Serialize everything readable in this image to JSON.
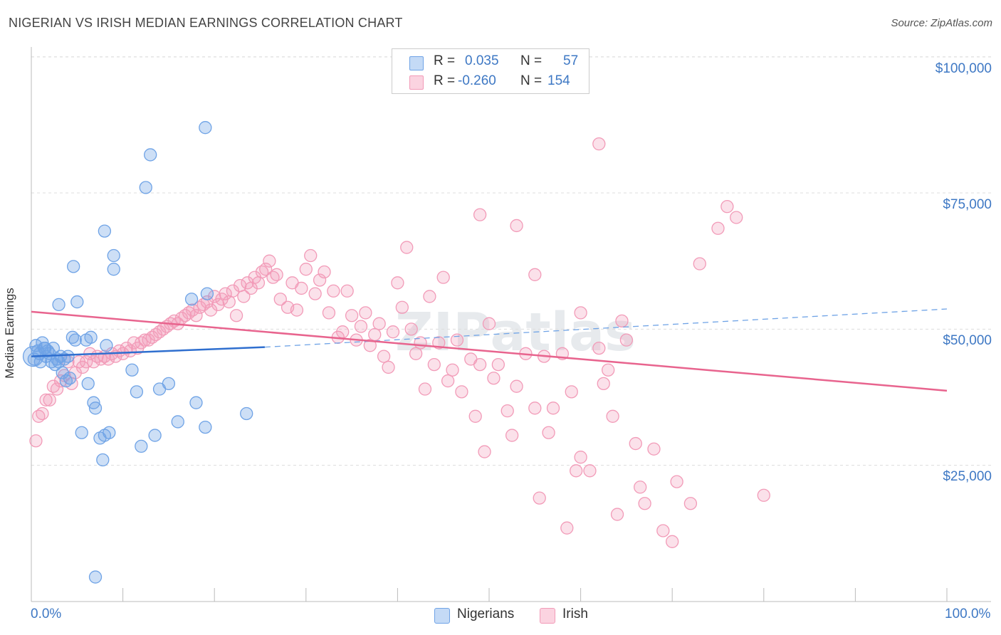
{
  "title": "NIGERIAN VS IRISH MEDIAN EARNINGS CORRELATION CHART",
  "source": "Source: ZipAtlas.com",
  "watermark": "ZIPatlas",
  "legend": {
    "rows": [
      {
        "r_label": "R =",
        "r_value": "0.035",
        "n_label": "N =",
        "n_value": "57"
      },
      {
        "r_label": "R =",
        "r_value": "-0.260",
        "n_label": "N =",
        "n_value": "154"
      }
    ]
  },
  "bottom_legend": {
    "nigerians": "Nigerians",
    "irish": "Irish"
  },
  "y_ticks": [
    "$100,000",
    "$75,000",
    "$50,000",
    "$25,000"
  ],
  "x_ticks": {
    "left": "0.0%",
    "right": "100.0%"
  },
  "colors": {
    "nigerians": "#6fa3e6",
    "nigerians_line": "#2f6fcf",
    "irish": "#f29bb8",
    "irish_line": "#e8648e",
    "accent": "#3e78c4"
  },
  "chart_data": {
    "type": "scatter",
    "title": "NIGERIAN VS IRISH MEDIAN EARNINGS CORRELATION CHART",
    "xlabel": "",
    "ylabel": "Median Earnings",
    "xlim": [
      0,
      100
    ],
    "ylim": [
      0,
      103000
    ],
    "y_gridlines": [
      25000,
      50000,
      75000,
      100000
    ],
    "series": [
      {
        "name": "Nigerians",
        "R": 0.035,
        "N": 57,
        "trend": {
          "x": [
            0,
            25.5
          ],
          "y": [
            45000,
            46700
          ],
          "dashed_to": [
            100,
            53700
          ]
        },
        "points": [
          [
            0.3,
            44500
          ],
          [
            0.5,
            47000
          ],
          [
            0.7,
            46000
          ],
          [
            0.9,
            45500
          ],
          [
            1.0,
            44000
          ],
          [
            1.2,
            47500
          ],
          [
            1.4,
            46500
          ],
          [
            1.6,
            45000
          ],
          [
            1.8,
            46000
          ],
          [
            2.0,
            45500
          ],
          [
            2.2,
            44000
          ],
          [
            2.4,
            46500
          ],
          [
            2.6,
            43500
          ],
          [
            2.8,
            44500
          ],
          [
            3.0,
            44000
          ],
          [
            3.2,
            45000
          ],
          [
            3.4,
            42000
          ],
          [
            3.6,
            44500
          ],
          [
            3.8,
            40500
          ],
          [
            4.0,
            45000
          ],
          [
            4.2,
            41000
          ],
          [
            4.5,
            48500
          ],
          [
            4.8,
            48000
          ],
          [
            5.0,
            55000
          ],
          [
            4.6,
            61500
          ],
          [
            3.0,
            54500
          ],
          [
            5.5,
            31000
          ],
          [
            6.0,
            48000
          ],
          [
            6.2,
            40000
          ],
          [
            6.5,
            48500
          ],
          [
            6.8,
            36500
          ],
          [
            7.0,
            35500
          ],
          [
            7.5,
            30000
          ],
          [
            7.8,
            26000
          ],
          [
            8.0,
            30500
          ],
          [
            8.2,
            47000
          ],
          [
            8.5,
            31000
          ],
          [
            9.0,
            61000
          ],
          [
            9.0,
            63500
          ],
          [
            8.0,
            68000
          ],
          [
            11.0,
            42500
          ],
          [
            11.5,
            38500
          ],
          [
            12.0,
            28500
          ],
          [
            12.5,
            76000
          ],
          [
            13.0,
            82000
          ],
          [
            13.5,
            30500
          ],
          [
            14.0,
            39000
          ],
          [
            15.0,
            40000
          ],
          [
            16.0,
            33000
          ],
          [
            17.5,
            55500
          ],
          [
            18.0,
            36500
          ],
          [
            19.0,
            32000
          ],
          [
            19.0,
            87000
          ],
          [
            19.2,
            56500
          ],
          [
            23.5,
            34500
          ],
          [
            7.0,
            4500
          ],
          [
            1.5,
            46500
          ]
        ]
      },
      {
        "name": "Irish",
        "R": -0.26,
        "N": 154,
        "trend": {
          "x": [
            0,
            100
          ],
          "y": [
            53200,
            38700
          ]
        },
        "points": [
          [
            0.5,
            29500
          ],
          [
            0.8,
            34000
          ],
          [
            1.2,
            34500
          ],
          [
            1.6,
            37000
          ],
          [
            2.0,
            37000
          ],
          [
            2.4,
            39500
          ],
          [
            2.8,
            39000
          ],
          [
            3.2,
            40500
          ],
          [
            3.6,
            41500
          ],
          [
            4.0,
            44000
          ],
          [
            4.4,
            40000
          ],
          [
            4.8,
            42000
          ],
          [
            5.2,
            44000
          ],
          [
            5.6,
            43000
          ],
          [
            6.0,
            44000
          ],
          [
            6.4,
            45500
          ],
          [
            6.8,
            44000
          ],
          [
            7.2,
            45000
          ],
          [
            7.6,
            44500
          ],
          [
            8.0,
            45000
          ],
          [
            8.4,
            44500
          ],
          [
            8.8,
            45500
          ],
          [
            9.2,
            45000
          ],
          [
            9.6,
            46000
          ],
          [
            10.0,
            45500
          ],
          [
            10.4,
            46500
          ],
          [
            10.8,
            46000
          ],
          [
            11.2,
            47500
          ],
          [
            11.6,
            46500
          ],
          [
            12.0,
            47500
          ],
          [
            12.4,
            48000
          ],
          [
            12.8,
            48000
          ],
          [
            13.2,
            48500
          ],
          [
            13.6,
            49000
          ],
          [
            14.0,
            49500
          ],
          [
            14.4,
            50000
          ],
          [
            14.8,
            50500
          ],
          [
            15.2,
            51000
          ],
          [
            15.6,
            51500
          ],
          [
            16.0,
            51000
          ],
          [
            16.4,
            52000
          ],
          [
            16.8,
            52500
          ],
          [
            17.2,
            53000
          ],
          [
            17.6,
            53500
          ],
          [
            18.0,
            52500
          ],
          [
            18.4,
            54000
          ],
          [
            18.8,
            54500
          ],
          [
            19.2,
            55000
          ],
          [
            19.6,
            53500
          ],
          [
            20.0,
            56000
          ],
          [
            20.4,
            54500
          ],
          [
            20.8,
            55500
          ],
          [
            21.2,
            56500
          ],
          [
            21.6,
            55000
          ],
          [
            22.0,
            57000
          ],
          [
            22.4,
            52500
          ],
          [
            22.8,
            58000
          ],
          [
            23.2,
            56000
          ],
          [
            23.6,
            58500
          ],
          [
            24.0,
            57500
          ],
          [
            24.4,
            59500
          ],
          [
            24.8,
            58500
          ],
          [
            25.2,
            60500
          ],
          [
            25.6,
            61000
          ],
          [
            26.0,
            62500
          ],
          [
            26.4,
            59500
          ],
          [
            26.8,
            60000
          ],
          [
            27.2,
            55500
          ],
          [
            28.0,
            54000
          ],
          [
            28.5,
            58500
          ],
          [
            29.0,
            53500
          ],
          [
            29.5,
            57500
          ],
          [
            30.0,
            61000
          ],
          [
            30.5,
            63500
          ],
          [
            31.0,
            56500
          ],
          [
            31.5,
            59000
          ],
          [
            32.0,
            60500
          ],
          [
            32.5,
            53000
          ],
          [
            33.0,
            57000
          ],
          [
            33.5,
            48500
          ],
          [
            34.0,
            49500
          ],
          [
            34.5,
            57000
          ],
          [
            35.0,
            52500
          ],
          [
            35.5,
            48000
          ],
          [
            36.0,
            50500
          ],
          [
            36.5,
            53000
          ],
          [
            37.0,
            47000
          ],
          [
            37.5,
            49000
          ],
          [
            38.0,
            51000
          ],
          [
            38.5,
            45000
          ],
          [
            39.0,
            43000
          ],
          [
            39.5,
            49500
          ],
          [
            40.0,
            58500
          ],
          [
            40.5,
            54000
          ],
          [
            41.0,
            65000
          ],
          [
            41.5,
            50000
          ],
          [
            42.0,
            45500
          ],
          [
            42.5,
            47500
          ],
          [
            43.0,
            39000
          ],
          [
            43.5,
            56000
          ],
          [
            44.0,
            43500
          ],
          [
            44.5,
            47500
          ],
          [
            45.0,
            59500
          ],
          [
            45.5,
            40500
          ],
          [
            46.0,
            42500
          ],
          [
            46.5,
            48000
          ],
          [
            47.0,
            38500
          ],
          [
            48.0,
            44500
          ],
          [
            48.5,
            34000
          ],
          [
            49.0,
            43500
          ],
          [
            49.5,
            27500
          ],
          [
            50.0,
            51000
          ],
          [
            50.5,
            41000
          ],
          [
            51.0,
            43500
          ],
          [
            52.0,
            35000
          ],
          [
            52.5,
            30500
          ],
          [
            53.0,
            39500
          ],
          [
            54.0,
            45500
          ],
          [
            55.0,
            35500
          ],
          [
            55.5,
            19000
          ],
          [
            56.0,
            45000
          ],
          [
            56.5,
            31000
          ],
          [
            57.0,
            35500
          ],
          [
            58.0,
            45500
          ],
          [
            58.5,
            13500
          ],
          [
            59.0,
            38500
          ],
          [
            59.5,
            24000
          ],
          [
            60.0,
            26500
          ],
          [
            61.0,
            24000
          ],
          [
            62.0,
            46500
          ],
          [
            62.5,
            40000
          ],
          [
            63.0,
            42500
          ],
          [
            63.5,
            34000
          ],
          [
            64.0,
            16000
          ],
          [
            64.5,
            51500
          ],
          [
            65.0,
            48000
          ],
          [
            66.0,
            29000
          ],
          [
            66.5,
            21000
          ],
          [
            67.0,
            18000
          ],
          [
            68.0,
            28000
          ],
          [
            69.0,
            13000
          ],
          [
            70.0,
            11000
          ],
          [
            70.5,
            22000
          ],
          [
            72.0,
            18000
          ],
          [
            73.0,
            62000
          ],
          [
            75.0,
            68500
          ],
          [
            76.0,
            72500
          ],
          [
            77.0,
            70500
          ],
          [
            80.0,
            19500
          ],
          [
            62.0,
            84000
          ],
          [
            55.0,
            60000
          ],
          [
            49.0,
            71000
          ],
          [
            53.0,
            69000
          ],
          [
            60.0,
            53000
          ]
        ]
      }
    ]
  }
}
